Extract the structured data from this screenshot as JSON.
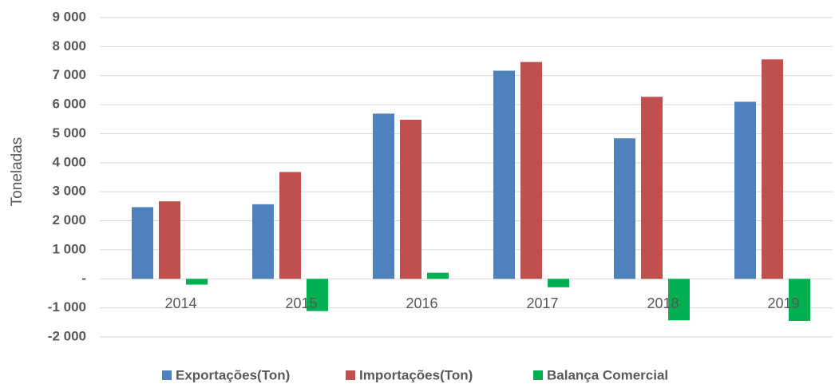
{
  "chart_data": {
    "type": "bar",
    "y_label": "Toneladas",
    "categories": [
      "2014",
      "2015",
      "2016",
      "2017",
      "2018",
      "2019"
    ],
    "series": [
      {
        "name": "Exportações(Ton)",
        "color": "#4f81bd",
        "values": [
          2470,
          2570,
          5690,
          7170,
          4840,
          6100
        ]
      },
      {
        "name": "Importações(Ton)",
        "color": "#c0504d",
        "values": [
          2670,
          3680,
          5480,
          7470,
          6270,
          7560
        ]
      },
      {
        "name": "Balança Comercial",
        "color": "#00b050",
        "values": [
          -200,
          -1110,
          210,
          -290,
          -1430,
          -1450
        ]
      }
    ],
    "ylim": [
      -2000,
      9000
    ],
    "yticks": [
      {
        "value": -2000,
        "label": "-2 000"
      },
      {
        "value": -1000,
        "label": "-1 000"
      },
      {
        "value": 0,
        "label": "-"
      },
      {
        "value": 1000,
        "label": "1 000"
      },
      {
        "value": 2000,
        "label": "2 000"
      },
      {
        "value": 3000,
        "label": "3 000"
      },
      {
        "value": 4000,
        "label": "4 000"
      },
      {
        "value": 5000,
        "label": "5 000"
      },
      {
        "value": 6000,
        "label": "6 000"
      },
      {
        "value": 7000,
        "label": "7 000"
      },
      {
        "value": 8000,
        "label": "8 000"
      },
      {
        "value": 9000,
        "label": "9 000"
      }
    ],
    "grid": true,
    "legend": "bottom"
  }
}
